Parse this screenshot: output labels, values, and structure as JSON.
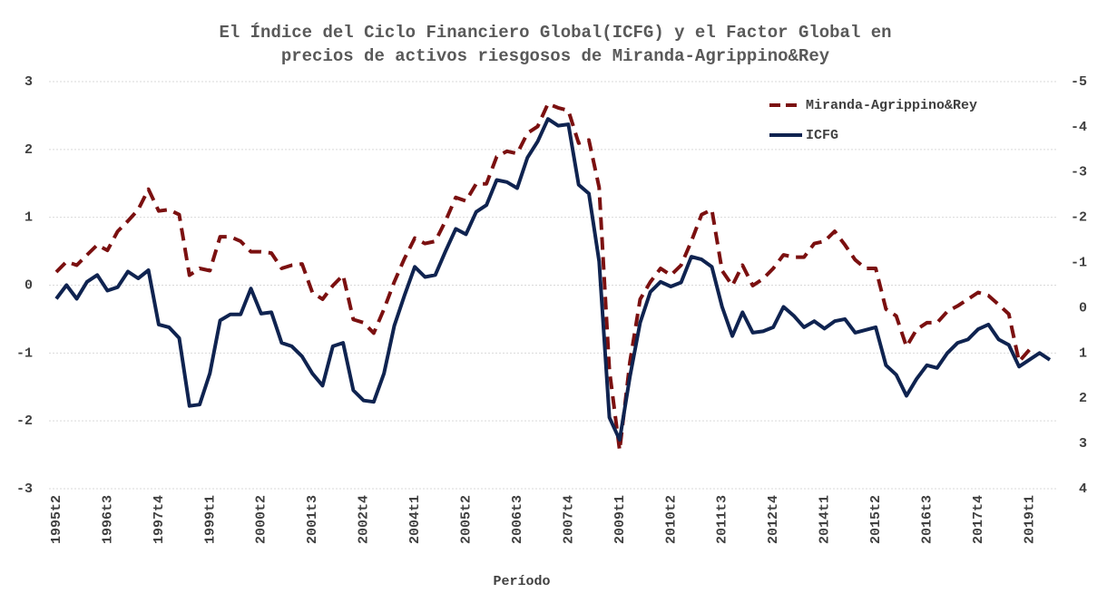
{
  "chart_data": {
    "type": "line",
    "title": [
      "El Índice del Ciclo Financiero Global(ICFG) y el Factor Global en",
      "precios de activos riesgosos de Miranda-Agrippino&Rey"
    ],
    "xlabel": "Período",
    "categories": [
      "1995t2",
      null,
      null,
      null,
      null,
      "1996t3",
      null,
      null,
      null,
      null,
      "1997t4",
      null,
      null,
      null,
      null,
      "1999t1",
      null,
      null,
      null,
      null,
      "2000t2",
      null,
      null,
      null,
      null,
      "2001t3",
      null,
      null,
      null,
      null,
      "2002t4",
      null,
      null,
      null,
      null,
      "2004t1",
      null,
      null,
      null,
      null,
      "2005t2",
      null,
      null,
      null,
      null,
      "2006t3",
      null,
      null,
      null,
      null,
      "2007t4",
      null,
      null,
      null,
      null,
      "2009t1",
      null,
      null,
      null,
      null,
      "2010t2",
      null,
      null,
      null,
      null,
      "2011t3",
      null,
      null,
      null,
      null,
      "2012t4",
      null,
      null,
      null,
      null,
      "2014t1",
      null,
      null,
      null,
      null,
      "2015t2",
      null,
      null,
      null,
      null,
      "2016t3",
      null,
      null,
      null,
      null,
      "2017t4",
      null,
      null,
      null,
      null,
      "2019t1",
      null,
      null
    ],
    "series": [
      {
        "name": "Miranda-Agrippino&Rey",
        "color": "#7b1010",
        "dash": true,
        "axis": "y2",
        "values": [
          -0.79,
          -1.02,
          -0.94,
          -1.17,
          -1.39,
          -1.27,
          -1.69,
          -1.92,
          -2.17,
          -2.62,
          -2.14,
          -2.17,
          -2.06,
          -0.72,
          -0.87,
          -0.82,
          -1.57,
          -1.57,
          -1.47,
          -1.24,
          -1.24,
          -1.21,
          -0.87,
          -0.94,
          -0.97,
          -0.34,
          -0.19,
          -0.49,
          -0.72,
          0.26,
          0.33,
          0.56,
          0.03,
          -0.57,
          -1.09,
          -1.54,
          -1.42,
          -1.47,
          -1.92,
          -2.44,
          -2.36,
          -2.74,
          -2.74,
          -3.34,
          -3.46,
          -3.41,
          -3.86,
          -4.01,
          -4.51,
          -4.42,
          -4.36,
          -3.64,
          -3.71,
          -2.66,
          1.38,
          3.15,
          1.2,
          -0.19,
          -0.57,
          -0.87,
          -0.72,
          -0.94,
          -1.47,
          -2.06,
          -2.17,
          -0.82,
          -0.49,
          -0.94,
          -0.49,
          -0.64,
          -0.87,
          -1.17,
          -1.12,
          -1.12,
          -1.42,
          -1.47,
          -1.69,
          -1.39,
          -1.06,
          -0.87,
          -0.87,
          0.03,
          0.18,
          0.86,
          0.48,
          0.33,
          0.33,
          0.08,
          -0.04,
          -0.19,
          -0.34,
          -0.27,
          -0.07,
          0.14,
          1.19,
          0.93,
          null,
          null
        ]
      },
      {
        "name": "ICFG",
        "color": "#0f2350",
        "dash": false,
        "axis": "y",
        "values": [
          -0.2,
          0,
          -0.2,
          0.05,
          0.15,
          -0.08,
          -0.03,
          0.2,
          0.1,
          0.22,
          -0.58,
          -0.62,
          -0.78,
          -1.78,
          -1.76,
          -1.3,
          -0.52,
          -0.43,
          -0.43,
          -0.05,
          -0.42,
          -0.4,
          -0.85,
          -0.9,
          -1.05,
          -1.3,
          -1.48,
          -0.9,
          -0.85,
          -1.55,
          -1.7,
          -1.72,
          -1.3,
          -0.6,
          -0.15,
          0.27,
          0.12,
          0.15,
          0.5,
          0.83,
          0.75,
          1.08,
          1.18,
          1.55,
          1.52,
          1.43,
          1.88,
          2.12,
          2.45,
          2.35,
          2.37,
          1.48,
          1.35,
          0.35,
          -1.95,
          -2.28,
          -1.35,
          -0.55,
          -0.1,
          0.05,
          -0.02,
          0.04,
          0.42,
          0.38,
          0.27,
          -0.32,
          -0.75,
          -0.4,
          -0.7,
          -0.68,
          -0.62,
          -0.32,
          -0.45,
          -0.62,
          -0.53,
          -0.64,
          -0.53,
          -0.5,
          -0.7,
          -0.66,
          -0.62,
          -1.18,
          -1.32,
          -1.63,
          -1.38,
          -1.18,
          -1.22,
          -1.0,
          -0.85,
          -0.8,
          -0.65,
          -0.58,
          -0.8,
          -0.88,
          -1.2,
          -1.1,
          -1.0,
          -1.1
        ]
      }
    ],
    "ylim": [
      -3,
      3
    ],
    "yticks": [
      -3,
      -2,
      -1,
      0,
      1,
      2,
      3
    ],
    "y2lim": [
      -5,
      4
    ],
    "y2reversed": true,
    "y2ticks": [
      -5,
      -4,
      -3,
      -2,
      -1,
      0,
      1,
      2,
      3,
      4
    ],
    "grid": true,
    "legend": "upper right"
  }
}
